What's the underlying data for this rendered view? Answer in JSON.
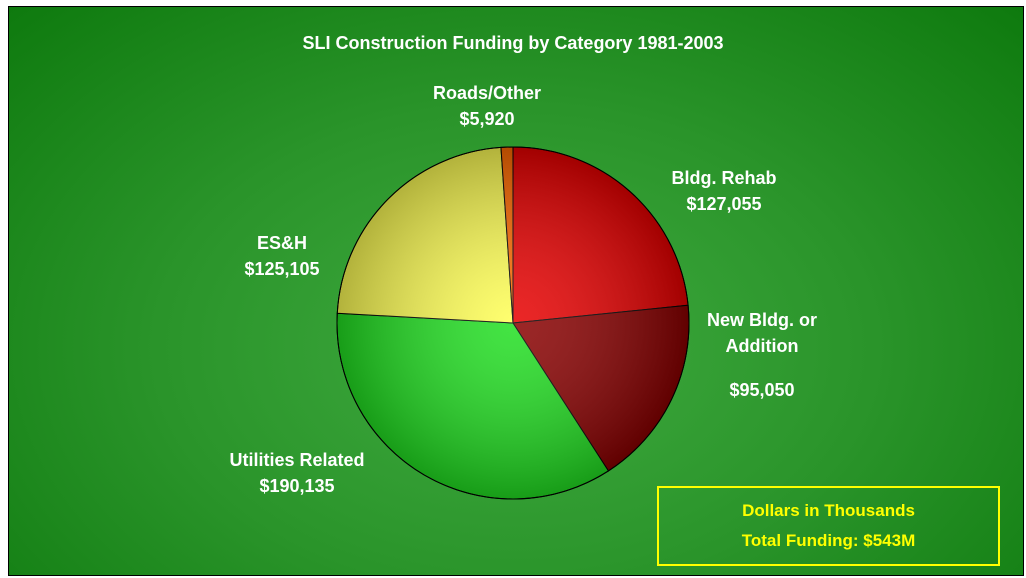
{
  "chart_data": {
    "type": "pie",
    "title": "SLI Construction Funding by Category 1981-2003",
    "categories": [
      "Bldg. Rehab",
      "New Bldg. or Addition",
      "Utilities Related",
      "ES&H",
      "Roads/Other"
    ],
    "values": [
      127055,
      95050,
      190135,
      125105,
      5920
    ],
    "value_labels": [
      "$127,055",
      "$95,050",
      "$190,135",
      "$125,105",
      "$5,920"
    ],
    "colors": [
      "#e80000",
      "#8a0000",
      "#22e022",
      "#ffff55",
      "#ff6a00"
    ],
    "annotations": [
      "Dollars in Thousands",
      "Total Funding: $543M"
    ]
  }
}
